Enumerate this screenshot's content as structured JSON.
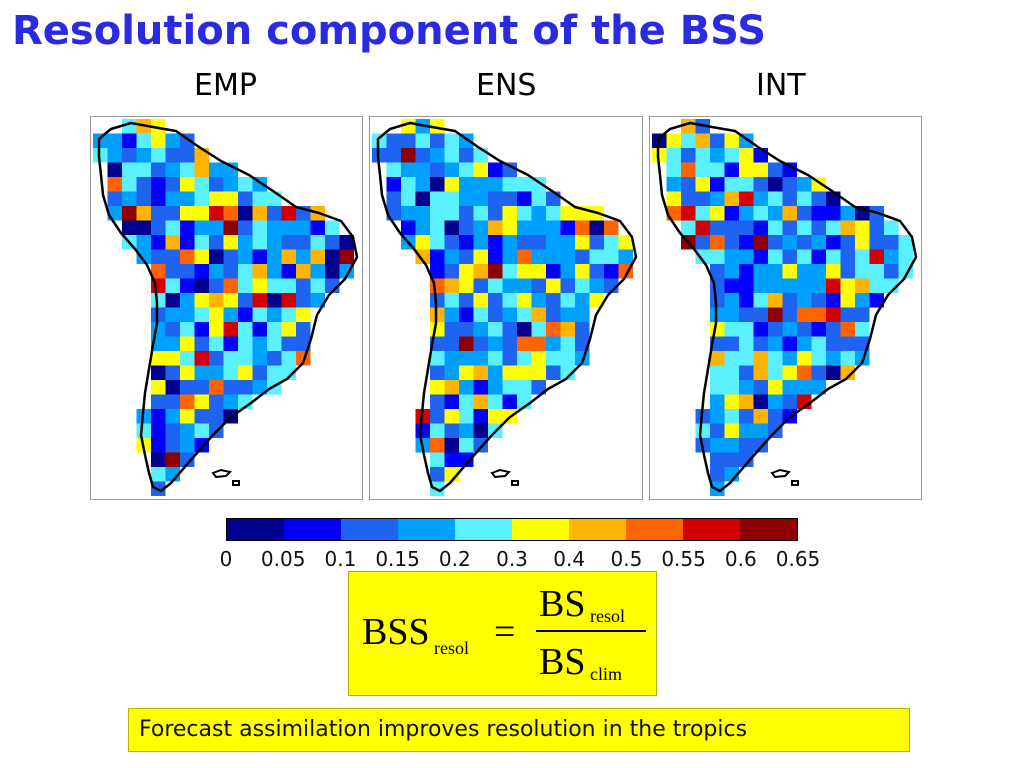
{
  "title": "Resolution component of the BSS",
  "maps": [
    {
      "label": "EMP"
    },
    {
      "label": "ENS"
    },
    {
      "label": "INT"
    }
  ],
  "colorbar": {
    "colors": [
      "#00008f",
      "#0000ff",
      "#1e64f0",
      "#00a0ff",
      "#5af0ff",
      "#ffff00",
      "#ffb400",
      "#ff6400",
      "#d20000",
      "#8f0000"
    ],
    "ticks": [
      "0",
      "0.05",
      "0.1",
      "0.15",
      "0.2",
      "0.3",
      "0.4",
      "0.5",
      "0.55",
      "0.6",
      "0.65"
    ]
  },
  "formula": {
    "lhs": "BSS",
    "lhs_sub": "resol",
    "eq": "=",
    "num": "BS",
    "num_sub": "resol",
    "den": "BS",
    "den_sub": "clim"
  },
  "caption": "Forecast assimilation improves resolution in the tropics"
}
